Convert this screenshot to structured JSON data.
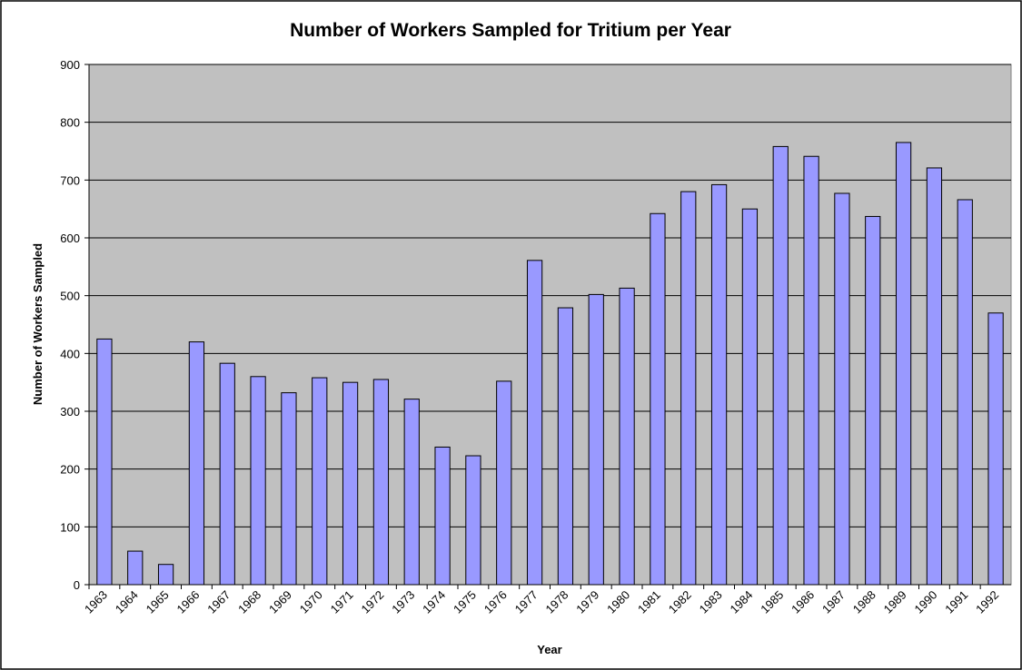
{
  "chart_data": {
    "type": "bar",
    "title": "Number of Workers Sampled for Tritium per Year",
    "x_label": "Year",
    "y_label": "Number of Workers Sampled",
    "categories": [
      "1963",
      "1964",
      "1965",
      "1966",
      "1967",
      "1968",
      "1969",
      "1970",
      "1971",
      "1972",
      "1973",
      "1974",
      "1975",
      "1976",
      "1977",
      "1978",
      "1979",
      "1980",
      "1981",
      "1982",
      "1983",
      "1984",
      "1985",
      "1986",
      "1987",
      "1988",
      "1989",
      "1990",
      "1991",
      "1992"
    ],
    "values": [
      425,
      58,
      35,
      420,
      383,
      360,
      332,
      358,
      350,
      355,
      321,
      238,
      223,
      352,
      561,
      479,
      502,
      513,
      642,
      680,
      692,
      650,
      758,
      741,
      677,
      637,
      765,
      721,
      666,
      470
    ],
    "color": "#9999ff",
    "ylim": [
      0,
      900
    ],
    "yticks": [
      0,
      100,
      200,
      300,
      400,
      500,
      600,
      700,
      800,
      900
    ],
    "grid": true
  }
}
